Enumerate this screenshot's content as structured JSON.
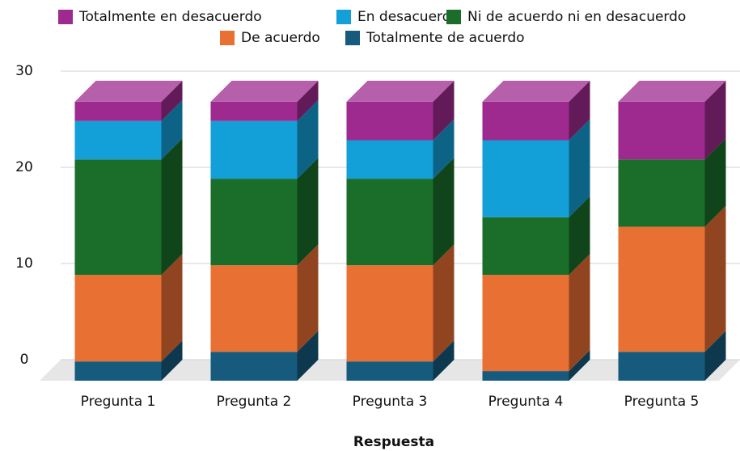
{
  "chart_data": {
    "type": "bar3d_stacked",
    "x_label": "Respuesta",
    "categories": [
      "Pregunta 1",
      "Pregunta 2",
      "Pregunta 3",
      "Pregunta 4",
      "Pregunta 5"
    ],
    "series": [
      {
        "name": "Totalmente en desacuerdo",
        "color": "#9e2a8f",
        "values": [
          2,
          2,
          4,
          4,
          6
        ]
      },
      {
        "name": "En desacuerdo",
        "color": "#139fd7",
        "values": [
          4,
          6,
          4,
          8,
          0
        ]
      },
      {
        "name": "Ni de acuerdo ni en desacuerdo",
        "color": "#1a6e2a",
        "values": [
          12,
          9,
          9,
          6,
          7
        ]
      },
      {
        "name": "De acuerdo",
        "color": "#e87033",
        "values": [
          9,
          9,
          10,
          10,
          13
        ]
      },
      {
        "name": "Totalmente de acuerdo",
        "color": "#165a7d",
        "values": [
          2,
          3,
          2,
          1,
          3
        ]
      }
    ],
    "ylim": [
      0,
      30
    ],
    "yticks": [
      0,
      10,
      20,
      30
    ],
    "grid": true,
    "legend": "top"
  }
}
